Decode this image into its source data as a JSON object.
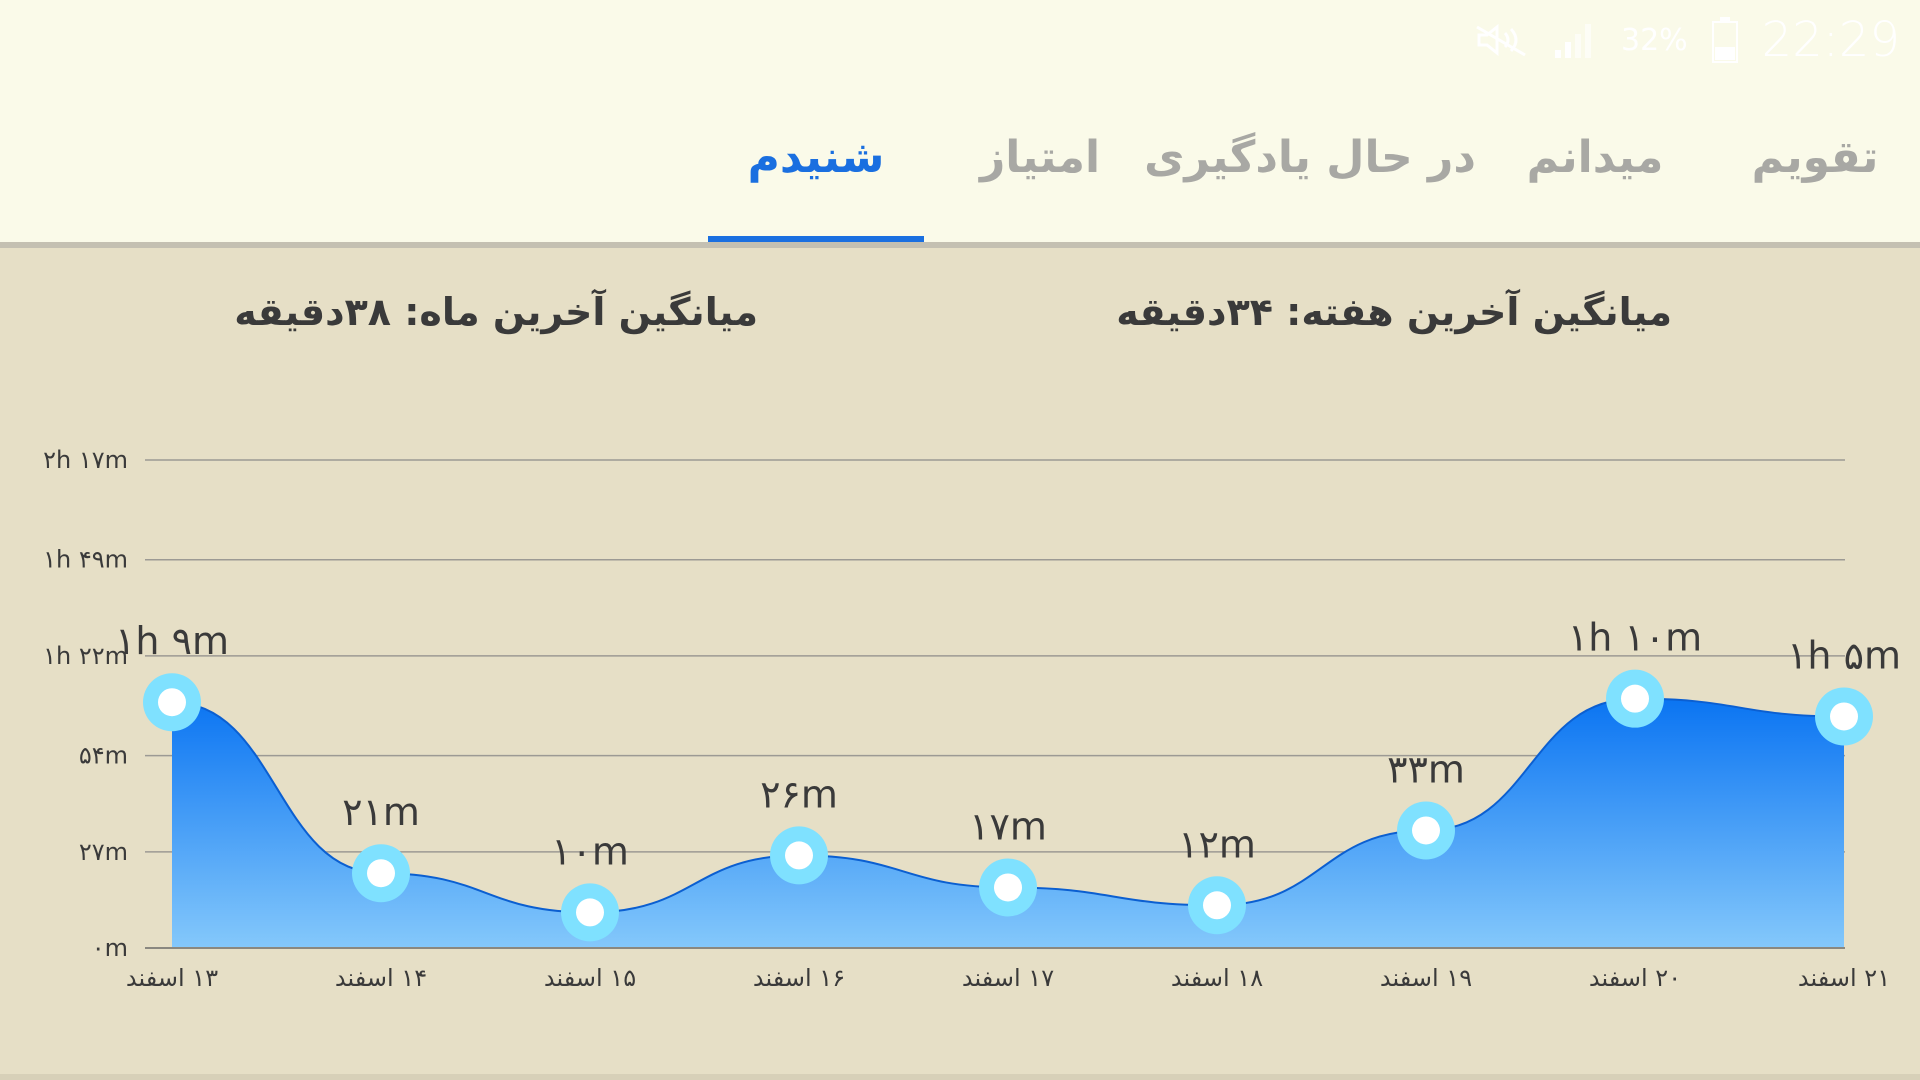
{
  "status_bar": {
    "time": "22:29",
    "battery_percent": "32%",
    "icons": [
      "mute-icon",
      "signal-icon",
      "battery-icon"
    ]
  },
  "tabs": [
    {
      "label": "تقویم",
      "active": false
    },
    {
      "label": "میدانم",
      "active": false
    },
    {
      "label": "در حال یادگیری",
      "active": false
    },
    {
      "label": "امتیاز",
      "active": false
    },
    {
      "label": "شنیدم",
      "active": true
    }
  ],
  "stats": {
    "week_average": "میانگین آخرین هفته: ۳۴دقیقه",
    "month_average": "میانگین آخرین ماه: ۳۸دقیقه"
  },
  "colors": {
    "accent": "#1a6fe0",
    "area_top": "#0a74f2",
    "area_bottom": "#84c8fb",
    "point_ring": "#7fe1ff",
    "inactive_tab": "#a8a8a4",
    "background": "#e6dfc6",
    "header_bg": "#fafae9"
  },
  "chart_data": {
    "type": "area",
    "x": [
      "۱۳ اسفند",
      "۱۴ اسفند",
      "۱۵ اسفند",
      "۱۶ اسفند",
      "۱۷ اسفند",
      "۱۸ اسفند",
      "۱۹ اسفند",
      "۲۰ اسفند",
      "۲۱ اسفند"
    ],
    "series": [
      {
        "values": [
          69,
          21,
          10,
          26,
          17,
          12,
          33,
          70,
          65
        ],
        "value_labels": [
          "۱h ۹m",
          "۲۱m",
          "۱۰m",
          "۲۶m",
          "۱۷m",
          "۱۲m",
          "۳۳m",
          "۱h ۱۰m",
          "۱h ۵m"
        ]
      }
    ],
    "y_ticks": [
      0,
      27,
      54,
      82,
      109,
      137
    ],
    "y_tick_labels": [
      "۰m",
      "۲۷m",
      "۵۴m",
      "۱h ۲۲m",
      "۱h ۴۹m",
      "۲h ۱۷m"
    ],
    "ylim": [
      0,
      137
    ],
    "grid": true,
    "smooth": true
  }
}
